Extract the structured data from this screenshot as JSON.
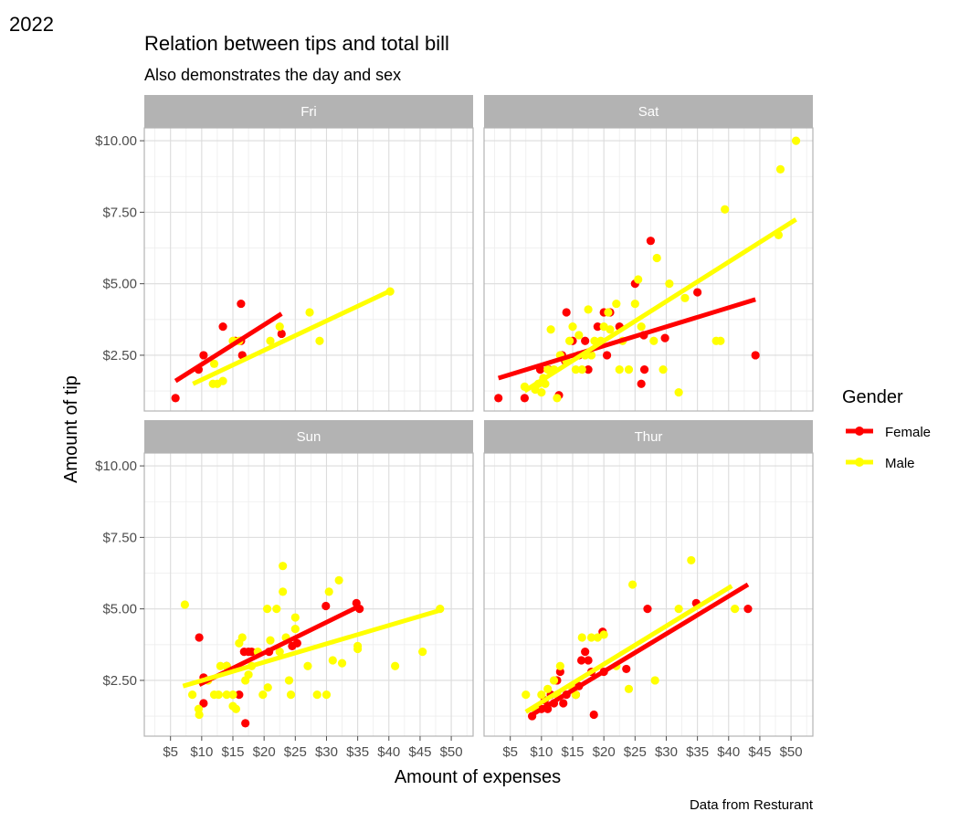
{
  "tag": "2022",
  "chart_data": {
    "type": "scatter",
    "title": "Relation between tips and total bill",
    "subtitle": "Also demonstrates the day and sex",
    "xlabel": "Amount of expenses",
    "ylabel": "Amount of tip",
    "caption": "Data from Resturant",
    "xlim": [
      0.8,
      53.5
    ],
    "ylim": [
      0.55,
      10.45
    ],
    "x_ticks": [
      5,
      10,
      15,
      20,
      25,
      30,
      35,
      40,
      45,
      50
    ],
    "x_tick_labels": [
      "$5",
      "$10",
      "$15",
      "$20",
      "$25",
      "$30",
      "$35",
      "$40",
      "$45",
      "$50"
    ],
    "y_ticks": [
      2.5,
      5,
      7.5,
      10
    ],
    "y_tick_labels": [
      "$2.50",
      "$5.00",
      "$7.50",
      "$10.00"
    ],
    "grid": true,
    "legend": {
      "title": "Gender",
      "placement": "right",
      "entries": [
        {
          "label": "Female",
          "color": "#ff0000"
        },
        {
          "label": "Male",
          "color": "#ffff00"
        }
      ]
    },
    "facets": [
      {
        "name": "Fri",
        "series": [
          {
            "name": "Female",
            "color": "#ff0000",
            "points": [
              [
                5.8,
                1.0
              ],
              [
                9.5,
                2.0
              ],
              [
                10.3,
                2.5
              ],
              [
                13.4,
                3.5
              ],
              [
                15.4,
                3.0
              ],
              [
                16.3,
                3.0
              ],
              [
                16.3,
                4.3
              ],
              [
                16.5,
                2.5
              ],
              [
                22.8,
                3.25
              ]
            ],
            "fit": [
              [
                5.8,
                1.6
              ],
              [
                22.8,
                3.95
              ]
            ]
          },
          {
            "name": "Male",
            "color": "#ffff00",
            "points": [
              [
                11.8,
                1.5
              ],
              [
                12.0,
                2.2
              ],
              [
                12.5,
                1.5
              ],
              [
                13.4,
                1.6
              ],
              [
                15.0,
                3.0
              ],
              [
                16.0,
                3.0
              ],
              [
                21.0,
                3.0
              ],
              [
                22.5,
                3.5
              ],
              [
                27.3,
                4.0
              ],
              [
                28.9,
                3.0
              ],
              [
                40.2,
                4.73
              ]
            ],
            "fit": [
              [
                8.6,
                1.5
              ],
              [
                40.2,
                4.75
              ]
            ]
          }
        ]
      },
      {
        "name": "Sat",
        "series": [
          {
            "name": "Female",
            "color": "#ff0000",
            "points": [
              [
                3.1,
                1.0
              ],
              [
                7.3,
                1.0
              ],
              [
                9.8,
                2.0
              ],
              [
                11.2,
                2.0
              ],
              [
                12.8,
                1.1
              ],
              [
                13.3,
                2.5
              ],
              [
                13.8,
                2.3
              ],
              [
                14.0,
                4.0
              ],
              [
                15.0,
                3.0
              ],
              [
                16.0,
                2.5
              ],
              [
                17.0,
                3.0
              ],
              [
                17.5,
                2.0
              ],
              [
                19.0,
                3.5
              ],
              [
                20.0,
                4.0
              ],
              [
                20.5,
                2.5
              ],
              [
                21.0,
                4.0
              ],
              [
                22.5,
                3.5
              ],
              [
                25.0,
                5.0
              ],
              [
                26.0,
                1.5
              ],
              [
                26.5,
                2.0
              ],
              [
                26.4,
                3.2
              ],
              [
                27.5,
                6.5
              ],
              [
                29.8,
                3.1
              ],
              [
                35.0,
                4.7
              ],
              [
                44.3,
                2.5
              ]
            ],
            "fit": [
              [
                3.1,
                1.7
              ],
              [
                44.3,
                4.45
              ]
            ]
          },
          {
            "name": "Male",
            "color": "#ffff00",
            "points": [
              [
                7.3,
                1.4
              ],
              [
                9.0,
                1.3
              ],
              [
                9.5,
                1.5
              ],
              [
                10.0,
                1.2
              ],
              [
                10.3,
                1.7
              ],
              [
                10.6,
                1.5
              ],
              [
                11.0,
                2.0
              ],
              [
                11.5,
                3.4
              ],
              [
                12.0,
                2.0
              ],
              [
                12.5,
                1.0
              ],
              [
                13.0,
                2.5
              ],
              [
                14.0,
                2.3
              ],
              [
                14.5,
                3.0
              ],
              [
                15.0,
                3.5
              ],
              [
                15.5,
                2.0
              ],
              [
                16.0,
                3.2
              ],
              [
                16.5,
                2.0
              ],
              [
                17.0,
                2.5
              ],
              [
                17.5,
                4.1
              ],
              [
                18.0,
                2.5
              ],
              [
                18.5,
                3.0
              ],
              [
                19.5,
                3.0
              ],
              [
                20.0,
                3.5
              ],
              [
                20.7,
                4.0
              ],
              [
                21.0,
                3.4
              ],
              [
                22.0,
                4.3
              ],
              [
                22.5,
                2.0
              ],
              [
                23.0,
                3.0
              ],
              [
                24.0,
                2.0
              ],
              [
                25.0,
                4.3
              ],
              [
                25.5,
                5.15
              ],
              [
                26.0,
                3.5
              ],
              [
                28.0,
                3.0
              ],
              [
                28.5,
                5.9
              ],
              [
                29.5,
                2.0
              ],
              [
                30.5,
                5.0
              ],
              [
                32.0,
                1.2
              ],
              [
                33.0,
                4.5
              ],
              [
                38.0,
                3.0
              ],
              [
                38.7,
                3.0
              ],
              [
                39.4,
                7.6
              ],
              [
                48.0,
                6.7
              ],
              [
                48.3,
                9.0
              ],
              [
                50.8,
                10.0
              ]
            ],
            "fit": [
              [
                7.3,
                1.25
              ],
              [
                50.8,
                7.25
              ]
            ]
          }
        ]
      },
      {
        "name": "Sun",
        "series": [
          {
            "name": "Female",
            "color": "#ff0000",
            "points": [
              [
                9.6,
                4.0
              ],
              [
                10.3,
                1.7
              ],
              [
                10.3,
                2.6
              ],
              [
                14.0,
                3.0
              ],
              [
                16.0,
                2.0
              ],
              [
                16.8,
                3.5
              ],
              [
                17.0,
                1.0
              ],
              [
                17.5,
                3.5
              ],
              [
                18.0,
                3.5
              ],
              [
                20.8,
                3.5
              ],
              [
                24.5,
                3.7
              ],
              [
                25.3,
                3.8
              ],
              [
                29.9,
                5.1
              ],
              [
                34.8,
                5.2
              ],
              [
                35.3,
                5.0
              ]
            ],
            "fit": [
              [
                9.6,
                2.35
              ],
              [
                35.3,
                5.1
              ]
            ]
          },
          {
            "name": "Male",
            "color": "#ffff00",
            "points": [
              [
                7.3,
                5.15
              ],
              [
                8.5,
                2.0
              ],
              [
                9.5,
                1.5
              ],
              [
                9.6,
                1.3
              ],
              [
                11.0,
                2.5
              ],
              [
                12.0,
                2.0
              ],
              [
                12.7,
                2.0
              ],
              [
                13.0,
                3.0
              ],
              [
                14.0,
                2.0
              ],
              [
                14.0,
                3.0
              ],
              [
                15.0,
                2.0
              ],
              [
                15.5,
                1.5
              ],
              [
                15.0,
                1.6
              ],
              [
                16.0,
                3.8
              ],
              [
                16.5,
                4.0
              ],
              [
                17.0,
                2.5
              ],
              [
                17.5,
                2.7
              ],
              [
                18.0,
                3.0
              ],
              [
                19.0,
                3.5
              ],
              [
                19.8,
                2.0
              ],
              [
                20.5,
                5.0
              ],
              [
                20.6,
                2.25
              ],
              [
                21.0,
                3.9
              ],
              [
                22.0,
                5.0
              ],
              [
                22.5,
                3.5
              ],
              [
                23.0,
                6.5
              ],
              [
                23.0,
                5.6
              ],
              [
                23.5,
                4.0
              ],
              [
                24.0,
                2.5
              ],
              [
                24.3,
                2.0
              ],
              [
                25.0,
                4.7
              ],
              [
                25.0,
                4.3
              ],
              [
                27.0,
                3.0
              ],
              [
                28.5,
                2.0
              ],
              [
                30.0,
                2.0
              ],
              [
                30.4,
                5.6
              ],
              [
                31.0,
                3.2
              ],
              [
                32.0,
                6.0
              ],
              [
                32.5,
                3.1
              ],
              [
                35.0,
                3.6
              ],
              [
                35.0,
                3.7
              ],
              [
                41.0,
                3.0
              ],
              [
                45.4,
                3.5
              ],
              [
                48.2,
                5.0
              ]
            ],
            "fit": [
              [
                7.0,
                2.3
              ],
              [
                48.2,
                4.95
              ]
            ]
          }
        ]
      },
      {
        "name": "Thur",
        "series": [
          {
            "name": "Female",
            "color": "#ff0000",
            "points": [
              [
                8.5,
                1.25
              ],
              [
                10.0,
                1.5
              ],
              [
                10.5,
                1.8
              ],
              [
                11.0,
                1.5
              ],
              [
                11.5,
                2.0
              ],
              [
                12.0,
                1.7
              ],
              [
                12.5,
                2.5
              ],
              [
                13.0,
                2.8
              ],
              [
                13.5,
                1.7
              ],
              [
                14.0,
                2.0
              ],
              [
                15.5,
                2.0
              ],
              [
                16.4,
                3.2
              ],
              [
                16.0,
                2.3
              ],
              [
                17.0,
                3.5
              ],
              [
                17.5,
                3.2
              ],
              [
                18.0,
                2.8
              ],
              [
                18.4,
                1.3
              ],
              [
                19.8,
                4.2
              ],
              [
                20.0,
                2.8
              ],
              [
                23.6,
                2.9
              ],
              [
                27.0,
                5.0
              ],
              [
                34.8,
                5.2
              ],
              [
                43.1,
                5.0
              ]
            ],
            "fit": [
              [
                8.5,
                1.3
              ],
              [
                43.1,
                5.85
              ]
            ]
          },
          {
            "name": "Male",
            "color": "#ffff00",
            "points": [
              [
                7.5,
                2.0
              ],
              [
                9.0,
                1.5
              ],
              [
                10.0,
                2.0
              ],
              [
                11.0,
                2.2
              ],
              [
                12.0,
                2.5
              ],
              [
                12.5,
                2.0
              ],
              [
                13.0,
                3.0
              ],
              [
                15.0,
                2.2
              ],
              [
                15.5,
                2.0
              ],
              [
                16.5,
                4.0
              ],
              [
                18.0,
                4.0
              ],
              [
                19.0,
                4.0
              ],
              [
                20.0,
                4.1
              ],
              [
                22.0,
                3.0
              ],
              [
                24.0,
                2.2
              ],
              [
                24.6,
                5.85
              ],
              [
                28.2,
                2.5
              ],
              [
                32.0,
                5.0
              ],
              [
                34.0,
                6.7
              ],
              [
                41.0,
                5.0
              ]
            ],
            "fit": [
              [
                7.5,
                1.4
              ],
              [
                40.5,
                5.8
              ]
            ]
          }
        ]
      }
    ]
  }
}
